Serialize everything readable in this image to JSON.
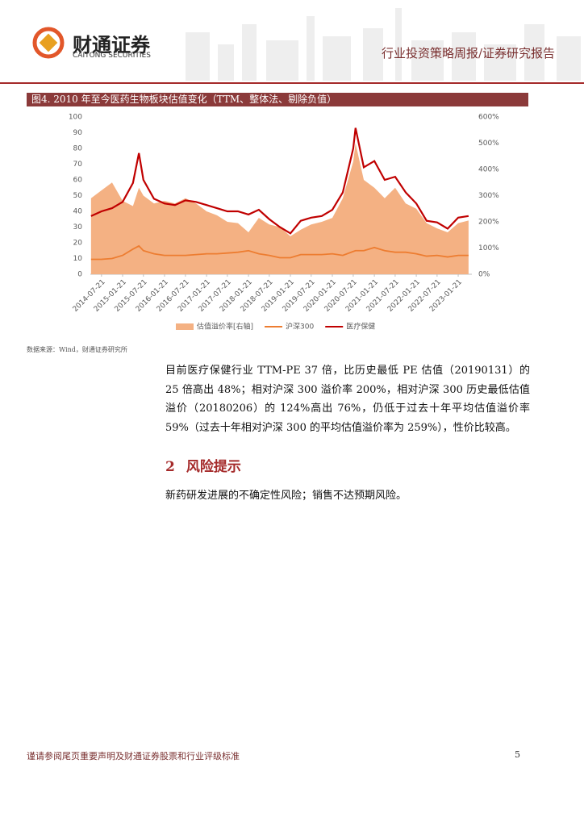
{
  "header": {
    "logo_cn": "财通证券",
    "logo_en": "CAITONG SECURITIES",
    "report_type": "行业投资策略周报/证券研究报告"
  },
  "figure": {
    "title": "图4. 2010 年至今医药生物板块估值变化（TTM、整体法、剔除负值）",
    "source": "数据来源：Wind，财通证券研究所",
    "chart_data": {
      "type": "line",
      "x": [
        "2014-04-21",
        "2014-07-21",
        "2014-10-21",
        "2015-01-21",
        "2015-04-21",
        "2015-06-12",
        "2015-07-21",
        "2015-10-21",
        "2016-01-21",
        "2016-04-21",
        "2016-07-21",
        "2016-10-21",
        "2017-01-21",
        "2017-04-21",
        "2017-07-21",
        "2017-10-21",
        "2018-01-21",
        "2018-04-21",
        "2018-07-21",
        "2018-10-21",
        "2019-01-21",
        "2019-04-21",
        "2019-07-21",
        "2019-10-21",
        "2020-01-21",
        "2020-04-21",
        "2020-07-21",
        "2020-08-10",
        "2020-10-21",
        "2021-01-21",
        "2021-04-21",
        "2021-07-21",
        "2021-10-21",
        "2022-01-21",
        "2022-04-21",
        "2022-07-21",
        "2022-10-21",
        "2023-01-21",
        "2023-04-21"
      ],
      "xlim": [
        "2014-04-15",
        "2023-05-20"
      ],
      "xticks": [
        "2014-07-21",
        "2015-01-21",
        "2015-07-21",
        "2016-01-21",
        "2016-07-21",
        "2017-01-21",
        "2017-07-21",
        "2018-01-21",
        "2018-07-21",
        "2019-01-21",
        "2019-07-21",
        "2020-01-21",
        "2020-07-21",
        "2021-01-21",
        "2021-07-21",
        "2022-01-21",
        "2022-07-21",
        "2023-01-21"
      ],
      "ylim": [
        0,
        100
      ],
      "yticks": [
        0,
        10,
        20,
        30,
        40,
        50,
        60,
        70,
        80,
        90,
        100
      ],
      "y2lim": [
        0,
        600
      ],
      "y2ticks": [
        {
          "value": 0,
          "label": "0%"
        },
        {
          "value": 100,
          "label": "100%"
        },
        {
          "value": 200,
          "label": "200%"
        },
        {
          "value": 300,
          "label": "300%"
        },
        {
          "value": 400,
          "label": "400%"
        },
        {
          "value": 500,
          "label": "500%"
        },
        {
          "value": 600,
          "label": "600%"
        }
      ],
      "grid": false,
      "legend": "bottom",
      "series": [
        {
          "name": "估值溢价率[右轴]",
          "type": "area",
          "axis": "y2",
          "color": "#F4B183",
          "values": [
            290,
            320,
            350,
            280,
            260,
            330,
            300,
            270,
            280,
            270,
            290,
            270,
            240,
            225,
            200,
            195,
            160,
            215,
            190,
            180,
            145,
            170,
            190,
            200,
            215,
            290,
            430,
            500,
            360,
            330,
            290,
            330,
            270,
            250,
            195,
            175,
            160,
            195,
            205
          ]
        },
        {
          "name": "沪深300",
          "type": "line",
          "color": "#ED7D31",
          "values": [
            9.5,
            9.5,
            10,
            12,
            16,
            18,
            15,
            13,
            12,
            12,
            12,
            12.5,
            13,
            13,
            13.5,
            14,
            15,
            13,
            12,
            10.5,
            10.5,
            12.5,
            12.5,
            12.5,
            13,
            12,
            14.5,
            15,
            15,
            17,
            15,
            14,
            14,
            13,
            11.5,
            12,
            11,
            12,
            12
          ]
        },
        {
          "name": "医疗保健",
          "type": "line",
          "color": "#C00000",
          "values": [
            37,
            40,
            42,
            46,
            58,
            77,
            60,
            48,
            45,
            44,
            47,
            46,
            44,
            42,
            40,
            40,
            38,
            41,
            35,
            30,
            26,
            34,
            36,
            37,
            41,
            52,
            80,
            93,
            68,
            72,
            60,
            62,
            52,
            45,
            34,
            33,
            29,
            36,
            37
          ]
        }
      ]
    }
  },
  "body": {
    "paragraph1": "目前医疗保健行业 TTM-PE 37 倍，比历史最低 PE 估值（20190131）的 25 倍高出 48%；相对沪深 300 溢价率 200%，相对沪深 300 历史最低估值溢价（20180206）的 124%高出 76%，仍低于过去十年平均估值溢价率 59%（过去十年相对沪深 300 的平均估值溢价率为 259%），性价比较高。",
    "section_number": "2",
    "section_title": "风险提示",
    "paragraph2": "新药研发进展的不确定性风险；销售不达预期风险。"
  },
  "footer": {
    "disclaimer": "谨请参阅尾页重要声明及财通证券股票和行业评级标准",
    "page": "5"
  }
}
